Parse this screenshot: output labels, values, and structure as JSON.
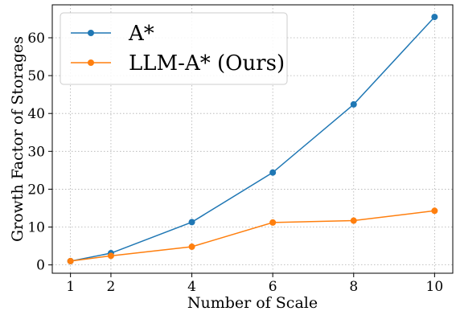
{
  "chart_data": {
    "type": "line",
    "xlabel": "Number of Scale",
    "ylabel": "Growth Factor of Storages",
    "x": [
      1,
      2,
      4,
      6,
      8,
      10
    ],
    "xticks": [
      1,
      2,
      4,
      6,
      8,
      10
    ],
    "yticks": [
      0,
      10,
      20,
      30,
      40,
      50,
      60
    ],
    "xlim": [
      0.55,
      10.45
    ],
    "ylim": [
      -2.2,
      68.7
    ],
    "grid": true,
    "legend_position": "top-left",
    "series": [
      {
        "name": "A*",
        "color": "#1f77b4",
        "values": [
          1.0,
          3.1,
          11.3,
          24.4,
          42.4,
          65.5
        ]
      },
      {
        "name": "LLM-A* (Ours)",
        "color": "#ff7f0e",
        "values": [
          1.0,
          2.4,
          4.8,
          11.2,
          11.7,
          14.3
        ]
      }
    ]
  }
}
